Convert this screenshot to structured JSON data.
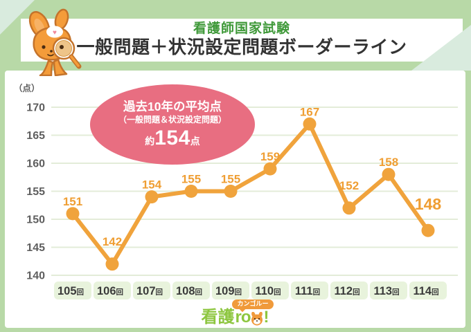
{
  "header": {
    "subtitle": "看護師国家試験",
    "title": "一般問題＋状況設定問題ボーダーライン"
  },
  "callout": {
    "line1": "過去10年の平均点",
    "line2": "（一般問題＆状況設定問題）",
    "approx": "約",
    "value": "154",
    "unit": "点"
  },
  "chart_data": {
    "type": "line",
    "title": "看護師国家試験 一般問題＋状況設定問題ボーダーライン",
    "unit_label": "（点）",
    "categories": [
      "105回",
      "106回",
      "107回",
      "108回",
      "109回",
      "110回",
      "111回",
      "112回",
      "113回",
      "114回"
    ],
    "category_suffix": "回",
    "values": [
      151,
      142,
      154,
      155,
      155,
      159,
      167,
      152,
      158,
      148
    ],
    "ylim": [
      140,
      170
    ],
    "ytick_step": 5,
    "yticks": [
      140,
      145,
      150,
      155,
      160,
      165,
      170
    ],
    "grid": true,
    "legend_position": "none",
    "emphasize_last_label": true,
    "average_last10": 154
  },
  "footer": {
    "logo_text": "看護roo!",
    "logo_part1": "看護",
    "logo_part2": "ro",
    "exclaim": "!",
    "bubble": "カンゴルー"
  },
  "colors": {
    "background_green": "#b8d9a7",
    "corner_accent": "#d9ebde",
    "title_green": "#3f9939",
    "title_dark": "#333333",
    "line_orange": "#f0a33c",
    "label_orange": "#ef9e33",
    "callout_pink": "#e86e81",
    "pill_green": "#e8f3dc",
    "grid_line": "#e3ecd8",
    "tick_text": "#5e5e5e",
    "logo_green": "#8dc63f",
    "bubble_orange": "#f09a3b"
  }
}
